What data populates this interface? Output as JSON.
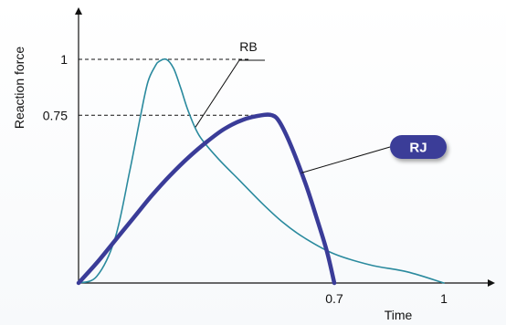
{
  "chart_data": {
    "type": "line",
    "xlabel": "Time",
    "ylabel": "Reaction force",
    "x_ticks": [
      {
        "value": 0.7,
        "label": "0.7"
      },
      {
        "value": 1.0,
        "label": "1"
      }
    ],
    "y_ticks": [
      {
        "value": 1.0,
        "label": "1"
      },
      {
        "value": 0.75,
        "label": "0.75"
      }
    ],
    "xlim": [
      0,
      1.05
    ],
    "ylim": [
      0,
      1.25
    ],
    "grid": false,
    "legend": "none",
    "series": [
      {
        "name": "RB",
        "color": "#2a8a9e",
        "x": [
          0,
          0.05,
          0.1,
          0.14,
          0.17,
          0.19,
          0.21,
          0.22,
          0.24,
          0.26,
          0.28,
          0.3,
          0.33,
          0.38,
          0.44,
          0.5,
          0.56,
          0.62,
          0.7,
          0.8,
          0.9,
          1.0
        ],
        "y": [
          0,
          0.03,
          0.2,
          0.5,
          0.75,
          0.9,
          0.97,
          0.99,
          1.0,
          0.96,
          0.87,
          0.77,
          0.66,
          0.56,
          0.46,
          0.36,
          0.27,
          0.2,
          0.13,
          0.08,
          0.05,
          0.0
        ]
      },
      {
        "name": "RJ",
        "color": "#3a3c98",
        "x": [
          0,
          0.05,
          0.1,
          0.15,
          0.2,
          0.25,
          0.3,
          0.35,
          0.4,
          0.45,
          0.5,
          0.53,
          0.55,
          0.58,
          0.62,
          0.65,
          0.68,
          0.7
        ],
        "y": [
          0,
          0.09,
          0.19,
          0.29,
          0.39,
          0.48,
          0.56,
          0.63,
          0.69,
          0.73,
          0.75,
          0.75,
          0.72,
          0.62,
          0.45,
          0.3,
          0.14,
          0.0
        ]
      }
    ],
    "annotations": [
      {
        "text": "RB",
        "series": "RB",
        "at_x": 0.32
      },
      {
        "text": "RJ",
        "series": "RJ",
        "at_x": 0.61
      }
    ]
  }
}
